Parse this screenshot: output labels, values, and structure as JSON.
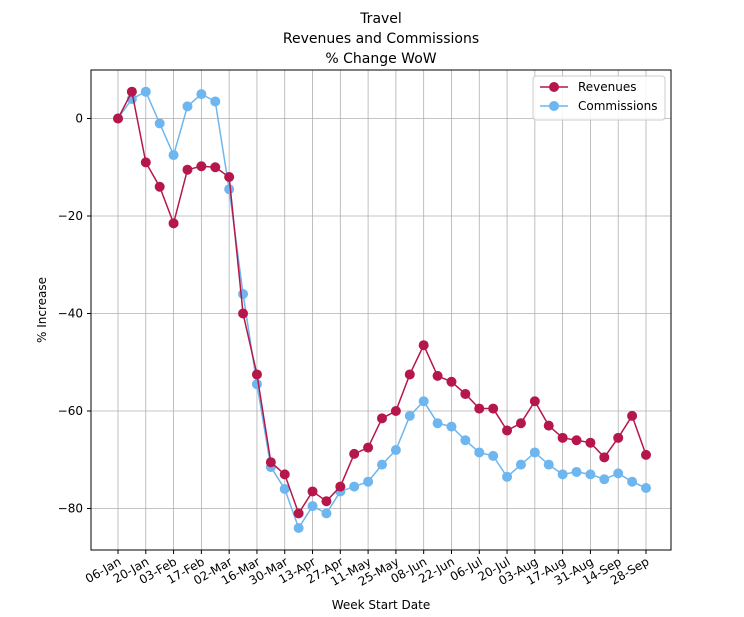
{
  "chart_data": {
    "type": "line",
    "title_lines": [
      "Travel",
      "Revenues and Commissions",
      "% Change WoW"
    ],
    "xlabel": "Week Start Date",
    "ylabel": "% Increase",
    "ylim": [
      -89,
      10
    ],
    "yticks": [
      0,
      -20,
      -40,
      -60,
      -80
    ],
    "grid": true,
    "legend_position": "top-right",
    "x_tick_labels": [
      "06-Jan",
      "20-Jan",
      "03-Feb",
      "17-Feb",
      "02-Mar",
      "16-Mar",
      "30-Mar",
      "13-Apr",
      "27-Apr",
      "11-May",
      "25-May",
      "08-Jun",
      "22-Jun",
      "06-Jul",
      "20-Jul",
      "03-Aug",
      "17-Aug",
      "31-Aug",
      "14-Sep",
      "28-Sep"
    ],
    "x": [
      "06-Jan",
      "13-Jan",
      "20-Jan",
      "27-Jan",
      "03-Feb",
      "10-Feb",
      "17-Feb",
      "24-Feb",
      "02-Mar",
      "09-Mar",
      "16-Mar",
      "23-Mar",
      "30-Mar",
      "06-Apr",
      "13-Apr",
      "20-Apr",
      "27-Apr",
      "04-May",
      "11-May",
      "18-May",
      "25-May",
      "01-Jun",
      "08-Jun",
      "15-Jun",
      "22-Jun",
      "29-Jun",
      "06-Jul",
      "13-Jul",
      "20-Jul",
      "27-Jul",
      "03-Aug",
      "10-Aug",
      "17-Aug",
      "24-Aug",
      "31-Aug",
      "07-Sep",
      "14-Sep",
      "21-Sep",
      "28-Sep"
    ],
    "series": [
      {
        "name": "Revenues",
        "color": "#b5174b",
        "values": [
          0,
          5.5,
          -9,
          -14,
          -21.5,
          -10.5,
          -9.8,
          -10,
          -12,
          -40,
          -52.5,
          -70.5,
          -73,
          -81,
          -76.5,
          -78.5,
          -75.5,
          -68.8,
          -67.5,
          -61.5,
          -60,
          -52.5,
          -46.5,
          -52.8,
          -54,
          -56.5,
          -59.5,
          -59.5,
          -64,
          -62.5,
          -58,
          -63,
          -65.5,
          -66,
          -66.5,
          -69.5,
          -65.5,
          -61,
          -69
        ]
      },
      {
        "name": "Commissions",
        "color": "#6db6ef",
        "values": [
          0,
          4,
          5.5,
          -1,
          -7.5,
          2.5,
          5,
          3.5,
          -14.5,
          -36,
          -54.5,
          -71.5,
          -76,
          -84,
          -79.5,
          -81,
          -76.5,
          -75.5,
          -74.5,
          -71,
          -68,
          -61,
          -58,
          -62.5,
          -63.2,
          -66,
          -68.5,
          -69.2,
          -73.5,
          -71,
          -68.5,
          -71,
          -73,
          -72.5,
          -73,
          -74,
          -72.8,
          -74.5,
          -75.8
        ]
      }
    ]
  }
}
